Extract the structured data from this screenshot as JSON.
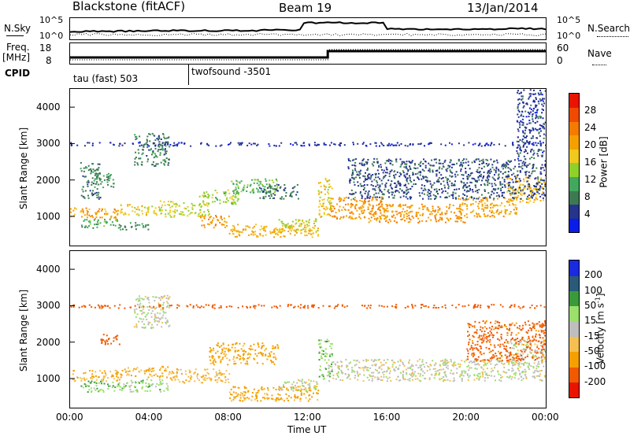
{
  "header": {
    "station": "Blackstone (fitACF)",
    "beam": "Beam 19",
    "date": "13/Jan/2014"
  },
  "noise_panel": {
    "left_label": "N.Sky",
    "right_label": "N.Search",
    "left_ticks": [
      "10^5",
      "10^0"
    ],
    "right_ticks": [
      "10^5",
      "10^0"
    ]
  },
  "freq_panel": {
    "left_label_1": "Freq.",
    "left_label_2": "[MHz]",
    "right_label": "Nave",
    "left_ticks": [
      "18",
      "8"
    ],
    "right_ticks": [
      "60",
      "0"
    ]
  },
  "cpid": {
    "label": "CPID",
    "mode_1": "tau (fast) 503",
    "mode_2": "twofsound -3501"
  },
  "time_axis": {
    "label": "Time UT",
    "ticks": [
      "00:00",
      "04:00",
      "08:00",
      "12:00",
      "16:00",
      "20:00",
      "00:00"
    ]
  },
  "chart_data": [
    {
      "type": "heatmap",
      "title": "Power",
      "ylabel": "Slant Range [km]",
      "xlabel": "",
      "ylim": [
        200,
        4500
      ],
      "xlim": [
        0,
        24
      ],
      "y_ticks": [
        1000,
        2000,
        3000,
        4000
      ],
      "colorbar": {
        "label": "Power [dB]",
        "ticks": [
          "4",
          "8",
          "12",
          "16",
          "20",
          "24",
          "28"
        ],
        "colors": [
          "#0a1de8",
          "#26348c",
          "#3d7a52",
          "#42a85e",
          "#8fd12a",
          "#f0c81e",
          "#f5a000",
          "#f57a00",
          "#f04a00",
          "#e81400"
        ]
      },
      "bands": [
        {
          "x": [
            0.0,
            2.5
          ],
          "y": [
            950,
            1250
          ],
          "v": 26
        },
        {
          "x": [
            0.5,
            2.5
          ],
          "y": [
            700,
            950
          ],
          "v": 14
        },
        {
          "x": [
            0.5,
            1.5
          ],
          "y": [
            1500,
            2500
          ],
          "v": 10
        },
        {
          "x": [
            1.2,
            2.2
          ],
          "y": [
            1800,
            2200
          ],
          "v": 12
        },
        {
          "x": [
            2.5,
            4.5
          ],
          "y": [
            1050,
            1350
          ],
          "v": 22
        },
        {
          "x": [
            2.5,
            4.0
          ],
          "y": [
            650,
            850
          ],
          "v": 13
        },
        {
          "x": [
            3.2,
            5.0
          ],
          "y": [
            2400,
            3300
          ],
          "v": 10
        },
        {
          "x": [
            4.5,
            7.0
          ],
          "y": [
            1000,
            1450
          ],
          "v": 20
        },
        {
          "x": [
            6.5,
            8.5
          ],
          "y": [
            1350,
            1750
          ],
          "v": 18
        },
        {
          "x": [
            6.5,
            8.0
          ],
          "y": [
            700,
            1050
          ],
          "v": 27
        },
        {
          "x": [
            8.0,
            10.5
          ],
          "y": [
            1650,
            2050
          ],
          "v": 15
        },
        {
          "x": [
            8.0,
            12.5
          ],
          "y": [
            450,
            800
          ],
          "v": 25
        },
        {
          "x": [
            10.5,
            12.5
          ],
          "y": [
            600,
            950
          ],
          "v": 19
        },
        {
          "x": [
            9.5,
            11.5
          ],
          "y": [
            1500,
            1900
          ],
          "v": 9
        },
        {
          "x": [
            12.5,
            13.2
          ],
          "y": [
            1000,
            2100
          ],
          "v": 22
        },
        {
          "x": [
            13.0,
            16.0
          ],
          "y": [
            950,
            1550
          ],
          "v": 27
        },
        {
          "x": [
            15.0,
            20.0
          ],
          "y": [
            850,
            1350
          ],
          "v": 27
        },
        {
          "x": [
            19.5,
            22.5
          ],
          "y": [
            1000,
            1550
          ],
          "v": 26
        },
        {
          "x": [
            22.0,
            24.0
          ],
          "y": [
            1400,
            2100
          ],
          "v": 24
        },
        {
          "x": [
            14.0,
            24.0
          ],
          "y": [
            1500,
            2600
          ],
          "v": 7
        },
        {
          "x": [
            22.5,
            24.0
          ],
          "y": [
            2600,
            4500
          ],
          "v": 6
        },
        {
          "x": [
            0.0,
            24.0
          ],
          "y": [
            2950,
            3050
          ],
          "v": 5
        }
      ]
    },
    {
      "type": "heatmap",
      "title": "Velocity",
      "ylabel": "Slant Range [km]",
      "xlabel": "Time UT",
      "ylim": [
        200,
        4500
      ],
      "xlim": [
        0,
        24
      ],
      "y_ticks": [
        1000,
        2000,
        3000,
        4000
      ],
      "colorbar": {
        "label": "Velocity [m s-1]",
        "label_main": "Velocity [m s",
        "label_sup": "-1",
        "label_end": "]",
        "ticks": [
          "-200",
          "-100",
          "-50",
          "-15",
          "15",
          "50",
          "100",
          "200"
        ],
        "colors": [
          "#e81400",
          "#f05a00",
          "#f5a000",
          "#f5c050",
          "#bebebe",
          "#9ae06a",
          "#3a9a3a",
          "#2a5a78",
          "#1a2ae0"
        ]
      },
      "bands": [
        {
          "x": [
            0.0,
            2.5
          ],
          "y": [
            950,
            1250
          ],
          "v": -60
        },
        {
          "x": [
            0.5,
            2.5
          ],
          "y": [
            650,
            950
          ],
          "v": 40
        },
        {
          "x": [
            1.5,
            2.5
          ],
          "y": [
            1950,
            2250
          ],
          "v": -150
        },
        {
          "x": [
            2.5,
            5.0
          ],
          "y": [
            1050,
            1350
          ],
          "v": -60
        },
        {
          "x": [
            3.2,
            5.0
          ],
          "y": [
            2400,
            3300
          ],
          "v": 0
        },
        {
          "x": [
            2.5,
            5.0
          ],
          "y": [
            650,
            1000
          ],
          "v": 30
        },
        {
          "x": [
            5.0,
            8.0
          ],
          "y": [
            900,
            1300
          ],
          "v": -40
        },
        {
          "x": [
            7.0,
            10.5
          ],
          "y": [
            1400,
            2000
          ],
          "v": -70
        },
        {
          "x": [
            8.0,
            12.5
          ],
          "y": [
            400,
            800
          ],
          "v": -70
        },
        {
          "x": [
            10.5,
            12.5
          ],
          "y": [
            650,
            1000
          ],
          "v": 0
        },
        {
          "x": [
            12.5,
            13.2
          ],
          "y": [
            1000,
            2100
          ],
          "v": 40
        },
        {
          "x": [
            13.0,
            24.0
          ],
          "y": [
            950,
            1550
          ],
          "v": 0
        },
        {
          "x": [
            22.0,
            24.0
          ],
          "y": [
            1400,
            2100
          ],
          "v": 0
        },
        {
          "x": [
            0.0,
            24.0
          ],
          "y": [
            2950,
            3050
          ],
          "v": -150
        },
        {
          "x": [
            20.0,
            24.0
          ],
          "y": [
            1500,
            2600
          ],
          "v": -120
        }
      ]
    }
  ]
}
